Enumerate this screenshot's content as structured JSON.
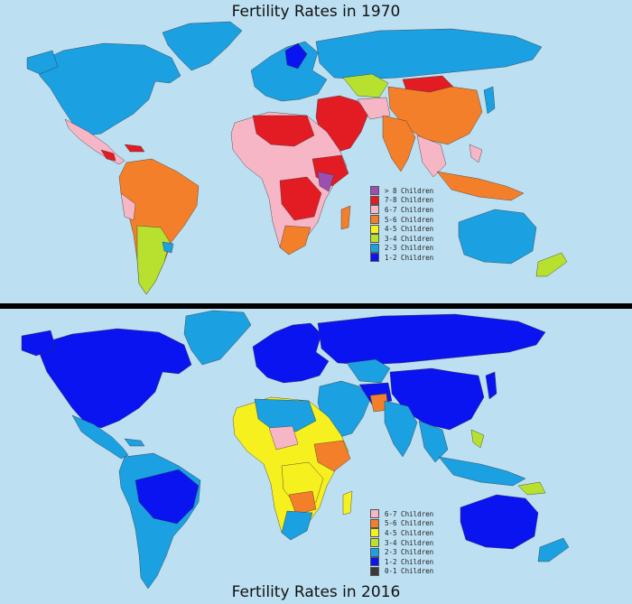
{
  "maps": [
    {
      "title": "Fertility Rates in 1970",
      "legend": [
        {
          "label": "> 8 Children",
          "color": "#9b4fb0"
        },
        {
          "label": "7-8 Children",
          "color": "#e31b23"
        },
        {
          "label": "6-7 Children",
          "color": "#f7b6c6"
        },
        {
          "label": "5-6 Children",
          "color": "#f47f2a"
        },
        {
          "label": "4-5 Children",
          "color": "#f6f01e"
        },
        {
          "label": "3-4 Children",
          "color": "#b7e12e"
        },
        {
          "label": "2-3 Children",
          "color": "#1ba0e2"
        },
        {
          "label": "1-2 Children",
          "color": "#0a14f0"
        }
      ]
    },
    {
      "title": "Fertility Rates in 2016",
      "legend": [
        {
          "label": "6-7 Children",
          "color": "#f7b6c6"
        },
        {
          "label": "5-6 Children",
          "color": "#f47f2a"
        },
        {
          "label": "4-5 Children",
          "color": "#f6f01e"
        },
        {
          "label": "3-4 Children",
          "color": "#b7e12e"
        },
        {
          "label": "2-3 Children",
          "color": "#1ba0e2"
        },
        {
          "label": "1-2 Children",
          "color": "#0a14f0"
        },
        {
          "label": "0-1 Children",
          "color": "#3a3a3a"
        }
      ]
    }
  ]
}
